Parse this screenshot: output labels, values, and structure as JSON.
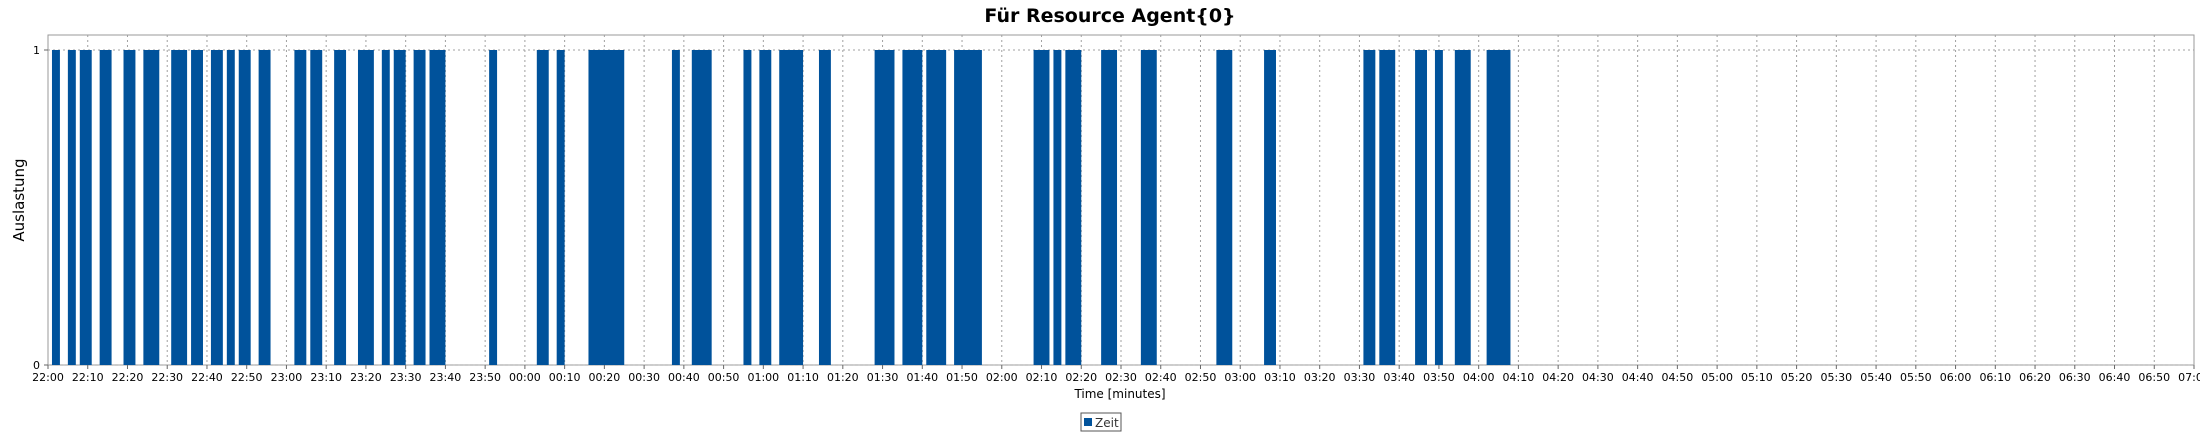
{
  "chart_data": {
    "type": "bar",
    "title": "Für Resource Agent{0}",
    "xlabel": "Time [minutes]",
    "ylabel": "Auslastung",
    "x_range": [
      "22:00",
      "07:00"
    ],
    "ylim": [
      0,
      1
    ],
    "y_ticks": [
      "0",
      "1"
    ],
    "x_ticks": [
      "22:00",
      "22:10",
      "22:20",
      "22:30",
      "22:40",
      "22:50",
      "23:00",
      "23:10",
      "23:20",
      "23:30",
      "23:40",
      "23:50",
      "00:00",
      "00:10",
      "00:20",
      "00:30",
      "00:40",
      "00:50",
      "01:00",
      "01:10",
      "01:20",
      "01:30",
      "01:40",
      "01:50",
      "02:00",
      "02:10",
      "02:20",
      "02:30",
      "02:40",
      "02:50",
      "03:00",
      "03:10",
      "03:20",
      "03:30",
      "03:40",
      "03:50",
      "04:00",
      "04:10",
      "04:20",
      "04:30",
      "04:40",
      "04:50",
      "05:00",
      "05:10",
      "05:20",
      "05:30",
      "05:40",
      "05:50",
      "06:00",
      "06:10",
      "06:20",
      "06:30",
      "06:40",
      "06:50",
      "07:00"
    ],
    "grid": true,
    "legend_position": "bottom-center",
    "series": [
      {
        "name": "Zeit",
        "color": "#00529b",
        "value": 1,
        "intervals": [
          [
            "22:01",
            "22:03"
          ],
          [
            "22:05",
            "22:07"
          ],
          [
            "22:08",
            "22:11"
          ],
          [
            "22:13",
            "22:16"
          ],
          [
            "22:19",
            "22:22"
          ],
          [
            "22:24",
            "22:28"
          ],
          [
            "22:31",
            "22:35"
          ],
          [
            "22:36",
            "22:39"
          ],
          [
            "22:41",
            "22:44"
          ],
          [
            "22:45",
            "22:47"
          ],
          [
            "22:48",
            "22:51"
          ],
          [
            "22:53",
            "22:56"
          ],
          [
            "23:02",
            "23:05"
          ],
          [
            "23:06",
            "23:09"
          ],
          [
            "23:12",
            "23:15"
          ],
          [
            "23:18",
            "23:22"
          ],
          [
            "23:24",
            "23:26"
          ],
          [
            "23:27",
            "23:30"
          ],
          [
            "23:32",
            "23:35"
          ],
          [
            "23:36",
            "23:40"
          ],
          [
            "23:51",
            "23:53"
          ],
          [
            "00:03",
            "00:06"
          ],
          [
            "00:08",
            "00:10"
          ],
          [
            "00:16",
            "00:25"
          ],
          [
            "00:37",
            "00:39"
          ],
          [
            "00:42",
            "00:47"
          ],
          [
            "00:55",
            "00:57"
          ],
          [
            "00:59",
            "01:02"
          ],
          [
            "01:04",
            "01:10"
          ],
          [
            "01:14",
            "01:17"
          ],
          [
            "01:28",
            "01:33"
          ],
          [
            "01:35",
            "01:40"
          ],
          [
            "01:41",
            "01:46"
          ],
          [
            "01:48",
            "01:55"
          ],
          [
            "02:08",
            "02:12"
          ],
          [
            "02:13",
            "02:15"
          ],
          [
            "02:16",
            "02:20"
          ],
          [
            "02:25",
            "02:29"
          ],
          [
            "02:35",
            "02:39"
          ],
          [
            "02:54",
            "02:58"
          ],
          [
            "03:06",
            "03:09"
          ],
          [
            "03:31",
            "03:34"
          ],
          [
            "03:35",
            "03:39"
          ],
          [
            "03:44",
            "03:47"
          ],
          [
            "03:49",
            "03:51"
          ],
          [
            "03:54",
            "03:58"
          ],
          [
            "04:02",
            "04:08"
          ]
        ]
      }
    ]
  }
}
